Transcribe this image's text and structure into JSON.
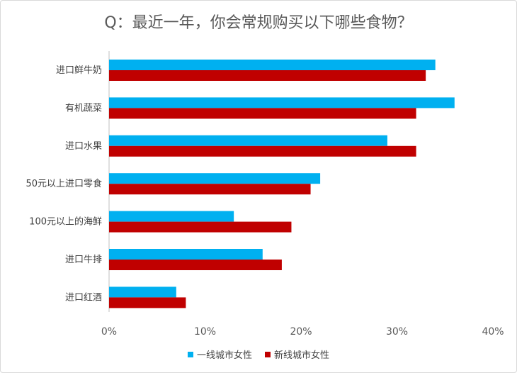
{
  "chart_data": {
    "type": "bar",
    "orientation": "horizontal",
    "title": "Q：最近一年，你会常规购买以下哪些食物？",
    "categories": [
      "进口鲜牛奶",
      "有机蔬菜",
      "进口水果",
      "50元以上进口零食",
      "100元以上的海鲜",
      "进口牛排",
      "进口红酒"
    ],
    "series": [
      {
        "name": "一线城市女性",
        "color": "#00b0f0",
        "values": [
          34,
          36,
          29,
          22,
          13,
          16,
          7
        ]
      },
      {
        "name": "新线城市女性",
        "color": "#c00000",
        "values": [
          33,
          32,
          32,
          21,
          19,
          18,
          8
        ]
      }
    ],
    "xlim": [
      0,
      40
    ],
    "xticks": [
      "0%",
      "10%",
      "20%",
      "30%",
      "40%"
    ],
    "legend_position": "bottom"
  }
}
